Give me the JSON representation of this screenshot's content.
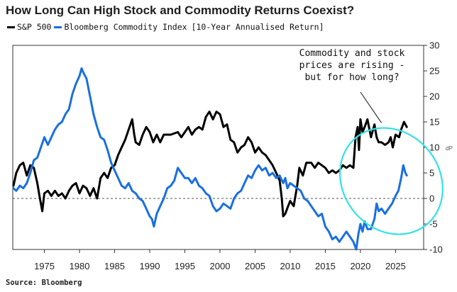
{
  "title": "How Long Can High Stock and Commodity Returns Coexist?",
  "source": "Source: Bloomberg",
  "corner_mark": "dP",
  "chart_data": {
    "type": "line",
    "title": "How Long Can High Stock and Commodity Returns Coexist?",
    "subtitle": "[10-Year Annualised Return]",
    "xlabel": "",
    "ylabel": "",
    "xlim": [
      1970.5,
      2029
    ],
    "ylim": [
      -10,
      30
    ],
    "x_ticks": [
      1975,
      1980,
      1985,
      1990,
      1995,
      2000,
      2005,
      2010,
      2015,
      2020,
      2025
    ],
    "y_ticks": [
      -10,
      -5,
      0,
      5,
      10,
      15,
      20,
      25,
      30
    ],
    "zero_line": "dashed",
    "grid": false,
    "legend_position": "top-left",
    "annotation": {
      "lines": [
        "Commodity and stock",
        "prices are rising -",
        "but for how long?"
      ],
      "highlight": "ellipse"
    },
    "series": [
      {
        "name": "S&P 500",
        "color": "#000000",
        "points": [
          [
            1970.6,
            2.5
          ],
          [
            1971.0,
            5.0
          ],
          [
            1971.5,
            6.5
          ],
          [
            1972.0,
            7.0
          ],
          [
            1972.5,
            4.5
          ],
          [
            1973.0,
            6.5
          ],
          [
            1973.5,
            6.0
          ],
          [
            1974.0,
            3.0
          ],
          [
            1974.3,
            0.5
          ],
          [
            1974.7,
            -2.5
          ],
          [
            1975.0,
            1.0
          ],
          [
            1975.5,
            1.5
          ],
          [
            1976.0,
            0.5
          ],
          [
            1976.5,
            1.5
          ],
          [
            1977.0,
            0.5
          ],
          [
            1977.5,
            1.0
          ],
          [
            1978.0,
            0.0
          ],
          [
            1978.5,
            1.5
          ],
          [
            1979.0,
            2.5
          ],
          [
            1979.5,
            3.0
          ],
          [
            1980.0,
            1.0
          ],
          [
            1980.5,
            2.5
          ],
          [
            1981.0,
            2.0
          ],
          [
            1981.5,
            0.5
          ],
          [
            1982.0,
            2.0
          ],
          [
            1982.5,
            0.0
          ],
          [
            1983.0,
            4.0
          ],
          [
            1983.5,
            5.0
          ],
          [
            1984.0,
            4.0
          ],
          [
            1984.5,
            6.0
          ],
          [
            1985.0,
            6.5
          ],
          [
            1985.5,
            8.5
          ],
          [
            1986.0,
            10.0
          ],
          [
            1986.5,
            11.5
          ],
          [
            1987.0,
            13.5
          ],
          [
            1987.5,
            15.5
          ],
          [
            1987.8,
            12.5
          ],
          [
            1988.0,
            11.0
          ],
          [
            1988.5,
            10.5
          ],
          [
            1989.0,
            12.5
          ],
          [
            1989.5,
            14.0
          ],
          [
            1990.0,
            13.0
          ],
          [
            1990.5,
            11.0
          ],
          [
            1991.0,
            12.5
          ],
          [
            1991.5,
            11.0
          ],
          [
            1992.0,
            12.5
          ],
          [
            1993.0,
            12.5
          ],
          [
            1994.0,
            13.0
          ],
          [
            1994.5,
            12.0
          ],
          [
            1995.0,
            13.0
          ],
          [
            1995.5,
            14.0
          ],
          [
            1996.0,
            12.5
          ],
          [
            1996.5,
            13.5
          ],
          [
            1997.0,
            14.0
          ],
          [
            1997.5,
            13.5
          ],
          [
            1998.0,
            16.0
          ],
          [
            1998.5,
            17.0
          ],
          [
            1999.0,
            15.5
          ],
          [
            1999.5,
            17.0
          ],
          [
            2000.0,
            16.5
          ],
          [
            2000.5,
            14.0
          ],
          [
            2001.0,
            14.5
          ],
          [
            2001.5,
            11.5
          ],
          [
            2002.0,
            11.0
          ],
          [
            2002.5,
            9.0
          ],
          [
            2003.0,
            10.0
          ],
          [
            2003.5,
            10.5
          ],
          [
            2004.0,
            12.0
          ],
          [
            2004.5,
            11.0
          ],
          [
            2005.0,
            9.0
          ],
          [
            2005.5,
            10.0
          ],
          [
            2006.0,
            9.0
          ],
          [
            2006.5,
            8.5
          ],
          [
            2007.0,
            7.5
          ],
          [
            2007.5,
            6.5
          ],
          [
            2008.0,
            5.0
          ],
          [
            2008.5,
            3.5
          ],
          [
            2008.8,
            0.0
          ],
          [
            2009.0,
            -3.5
          ],
          [
            2009.3,
            -3.0
          ],
          [
            2009.7,
            -1.5
          ],
          [
            2010.0,
            -0.5
          ],
          [
            2010.5,
            -1.5
          ],
          [
            2011.0,
            2.5
          ],
          [
            2011.3,
            6.0
          ],
          [
            2011.8,
            4.5
          ],
          [
            2012.3,
            7.0
          ],
          [
            2013.0,
            7.0
          ],
          [
            2013.5,
            6.0
          ],
          [
            2014.0,
            7.0
          ],
          [
            2014.5,
            6.5
          ],
          [
            2015.0,
            6.0
          ],
          [
            2015.5,
            5.0
          ],
          [
            2016.0,
            5.5
          ],
          [
            2016.5,
            5.0
          ],
          [
            2017.0,
            5.5
          ],
          [
            2017.5,
            6.5
          ],
          [
            2018.0,
            6.0
          ],
          [
            2018.5,
            6.5
          ],
          [
            2019.0,
            6.0
          ],
          [
            2019.3,
            12.0
          ],
          [
            2019.6,
            14.0
          ],
          [
            2019.8,
            9.5
          ],
          [
            2020.0,
            15.5
          ],
          [
            2020.3,
            13.0
          ],
          [
            2020.6,
            14.0
          ],
          [
            2021.0,
            15.5
          ],
          [
            2021.5,
            12.0
          ],
          [
            2022.0,
            14.5
          ],
          [
            2022.3,
            12.0
          ],
          [
            2022.6,
            11.0
          ],
          [
            2023.0,
            11.0
          ],
          [
            2023.5,
            10.5
          ],
          [
            2024.0,
            11.0
          ],
          [
            2024.3,
            12.0
          ],
          [
            2024.6,
            10.0
          ],
          [
            2025.0,
            12.5
          ],
          [
            2025.5,
            12.0
          ],
          [
            2025.8,
            13.5
          ],
          [
            2026.2,
            15.0
          ],
          [
            2026.6,
            14.0
          ]
        ]
      },
      {
        "name": "Bloomberg Commodity Index",
        "color": "#1a6fe0",
        "points": [
          [
            1970.6,
            2.0
          ],
          [
            1971.0,
            1.5
          ],
          [
            1971.5,
            2.5
          ],
          [
            1972.0,
            2.0
          ],
          [
            1972.5,
            3.0
          ],
          [
            1973.0,
            5.0
          ],
          [
            1973.5,
            7.5
          ],
          [
            1974.0,
            8.0
          ],
          [
            1974.5,
            10.0
          ],
          [
            1975.0,
            12.0
          ],
          [
            1975.5,
            10.5
          ],
          [
            1976.0,
            12.0
          ],
          [
            1976.5,
            13.5
          ],
          [
            1977.0,
            14.5
          ],
          [
            1977.5,
            15.0
          ],
          [
            1978.0,
            16.5
          ],
          [
            1978.5,
            17.5
          ],
          [
            1979.0,
            20.5
          ],
          [
            1979.5,
            22.5
          ],
          [
            1980.0,
            24.0
          ],
          [
            1980.3,
            25.5
          ],
          [
            1980.6,
            24.5
          ],
          [
            1981.0,
            23.5
          ],
          [
            1981.5,
            20.0
          ],
          [
            1982.0,
            16.5
          ],
          [
            1982.5,
            14.0
          ],
          [
            1983.0,
            12.0
          ],
          [
            1983.5,
            11.5
          ],
          [
            1984.0,
            9.5
          ],
          [
            1984.5,
            7.0
          ],
          [
            1985.0,
            5.5
          ],
          [
            1985.5,
            4.0
          ],
          [
            1986.0,
            2.5
          ],
          [
            1986.5,
            2.0
          ],
          [
            1987.0,
            3.0
          ],
          [
            1987.5,
            1.5
          ],
          [
            1988.0,
            1.0
          ],
          [
            1988.5,
            0.0
          ],
          [
            1989.0,
            -0.5
          ],
          [
            1989.5,
            -2.0
          ],
          [
            1990.0,
            -3.5
          ],
          [
            1990.3,
            -4.0
          ],
          [
            1990.6,
            -5.5
          ],
          [
            1991.0,
            -3.0
          ],
          [
            1991.5,
            -1.5
          ],
          [
            1992.0,
            0.0
          ],
          [
            1992.5,
            2.0
          ],
          [
            1993.0,
            2.5
          ],
          [
            1993.5,
            3.5
          ],
          [
            1994.0,
            6.0
          ],
          [
            1994.5,
            5.0
          ],
          [
            1995.0,
            4.0
          ],
          [
            1995.5,
            4.0
          ],
          [
            1996.0,
            3.0
          ],
          [
            1996.5,
            4.0
          ],
          [
            1997.0,
            2.5
          ],
          [
            1997.5,
            2.0
          ],
          [
            1998.0,
            1.0
          ],
          [
            1998.5,
            0.5
          ],
          [
            1999.0,
            -1.5
          ],
          [
            1999.5,
            -2.5
          ],
          [
            2000.0,
            -2.0
          ],
          [
            2000.5,
            -1.0
          ],
          [
            2001.0,
            -1.5
          ],
          [
            2001.5,
            -2.0
          ],
          [
            2002.0,
            0.0
          ],
          [
            2002.5,
            1.0
          ],
          [
            2003.0,
            1.5
          ],
          [
            2003.5,
            3.0
          ],
          [
            2004.0,
            4.5
          ],
          [
            2004.5,
            4.0
          ],
          [
            2005.0,
            5.5
          ],
          [
            2005.5,
            6.5
          ],
          [
            2006.0,
            5.5
          ],
          [
            2006.5,
            6.0
          ],
          [
            2007.0,
            4.5
          ],
          [
            2007.5,
            5.0
          ],
          [
            2008.0,
            4.0
          ],
          [
            2008.5,
            4.5
          ],
          [
            2009.0,
            3.0
          ],
          [
            2009.3,
            4.0
          ],
          [
            2009.6,
            2.0
          ],
          [
            2010.0,
            3.0
          ],
          [
            2010.5,
            2.5
          ],
          [
            2011.0,
            2.0
          ],
          [
            2011.5,
            1.5
          ],
          [
            2012.0,
            0.0
          ],
          [
            2012.5,
            -0.5
          ],
          [
            2013.0,
            -1.5
          ],
          [
            2013.5,
            -2.5
          ],
          [
            2014.0,
            -3.5
          ],
          [
            2014.5,
            -3.0
          ],
          [
            2015.0,
            -5.5
          ],
          [
            2015.5,
            -6.5
          ],
          [
            2016.0,
            -8.0
          ],
          [
            2016.5,
            -7.5
          ],
          [
            2017.0,
            -8.5
          ],
          [
            2017.5,
            -7.5
          ],
          [
            2018.0,
            -6.5
          ],
          [
            2018.5,
            -7.5
          ],
          [
            2019.0,
            -8.5
          ],
          [
            2019.4,
            -10.0
          ],
          [
            2019.7,
            -7.0
          ],
          [
            2020.0,
            -5.0
          ],
          [
            2020.3,
            -6.5
          ],
          [
            2020.6,
            -4.5
          ],
          [
            2021.0,
            -6.0
          ],
          [
            2021.5,
            -6.0
          ],
          [
            2022.0,
            -4.0
          ],
          [
            2022.3,
            -1.0
          ],
          [
            2022.6,
            -2.5
          ],
          [
            2023.0,
            -2.0
          ],
          [
            2023.5,
            -3.0
          ],
          [
            2024.0,
            -2.0
          ],
          [
            2024.5,
            -1.0
          ],
          [
            2025.0,
            0.5
          ],
          [
            2025.4,
            1.5
          ],
          [
            2025.8,
            4.0
          ],
          [
            2026.1,
            6.5
          ],
          [
            2026.4,
            5.0
          ],
          [
            2026.6,
            4.5
          ]
        ]
      }
    ]
  }
}
